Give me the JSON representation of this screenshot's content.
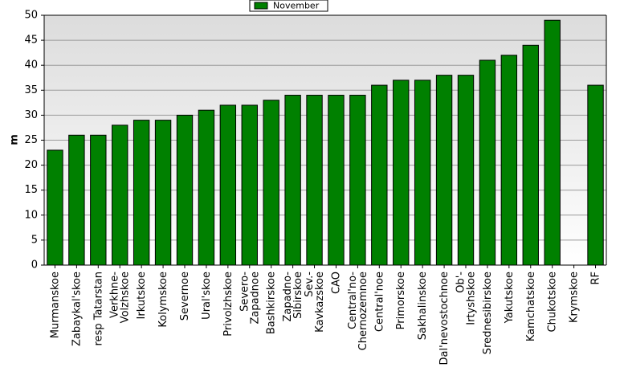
{
  "chart_data": {
    "type": "bar",
    "y_label": "m",
    "categories": [
      "Murmanskoe",
      "Zabaykal'skoe",
      "resp Tatarstan",
      "Verkhne-\nVolzhskoe",
      "Irkutskoe",
      "Kolymskoe",
      "Severnoe",
      "Ural'skoe",
      "Privolzhskoe",
      "Severo-\nZapadnoe",
      "Bashkirskoe",
      "Zapadno-\nSibirskoe",
      "Sev.-\nKavkazskoe",
      "CAO",
      "Central'no-\nChernozemnoe",
      "Central'noe",
      "Primorskoe",
      "Sakhalinskoe",
      "Dal'nevostochnoe",
      "Ob'-\nIrtyshskoe",
      "Srednesibirskoe",
      "Yakutskoe",
      "Kamchatskoe",
      "Chukotskoe",
      "Krymskoe",
      "RF"
    ],
    "series": [
      {
        "name": "November",
        "color": "#008000",
        "values": [
          23,
          26,
          26,
          28,
          29,
          29,
          30,
          31,
          32,
          32,
          33,
          34,
          34,
          34,
          34,
          36,
          37,
          37,
          38,
          38,
          41,
          42,
          44,
          49,
          null,
          36
        ]
      }
    ],
    "ylim": [
      0,
      50
    ],
    "yticks": [
      0,
      5,
      10,
      15,
      20,
      25,
      30,
      35,
      40,
      45,
      50
    ],
    "grid": true,
    "legend": "top"
  }
}
